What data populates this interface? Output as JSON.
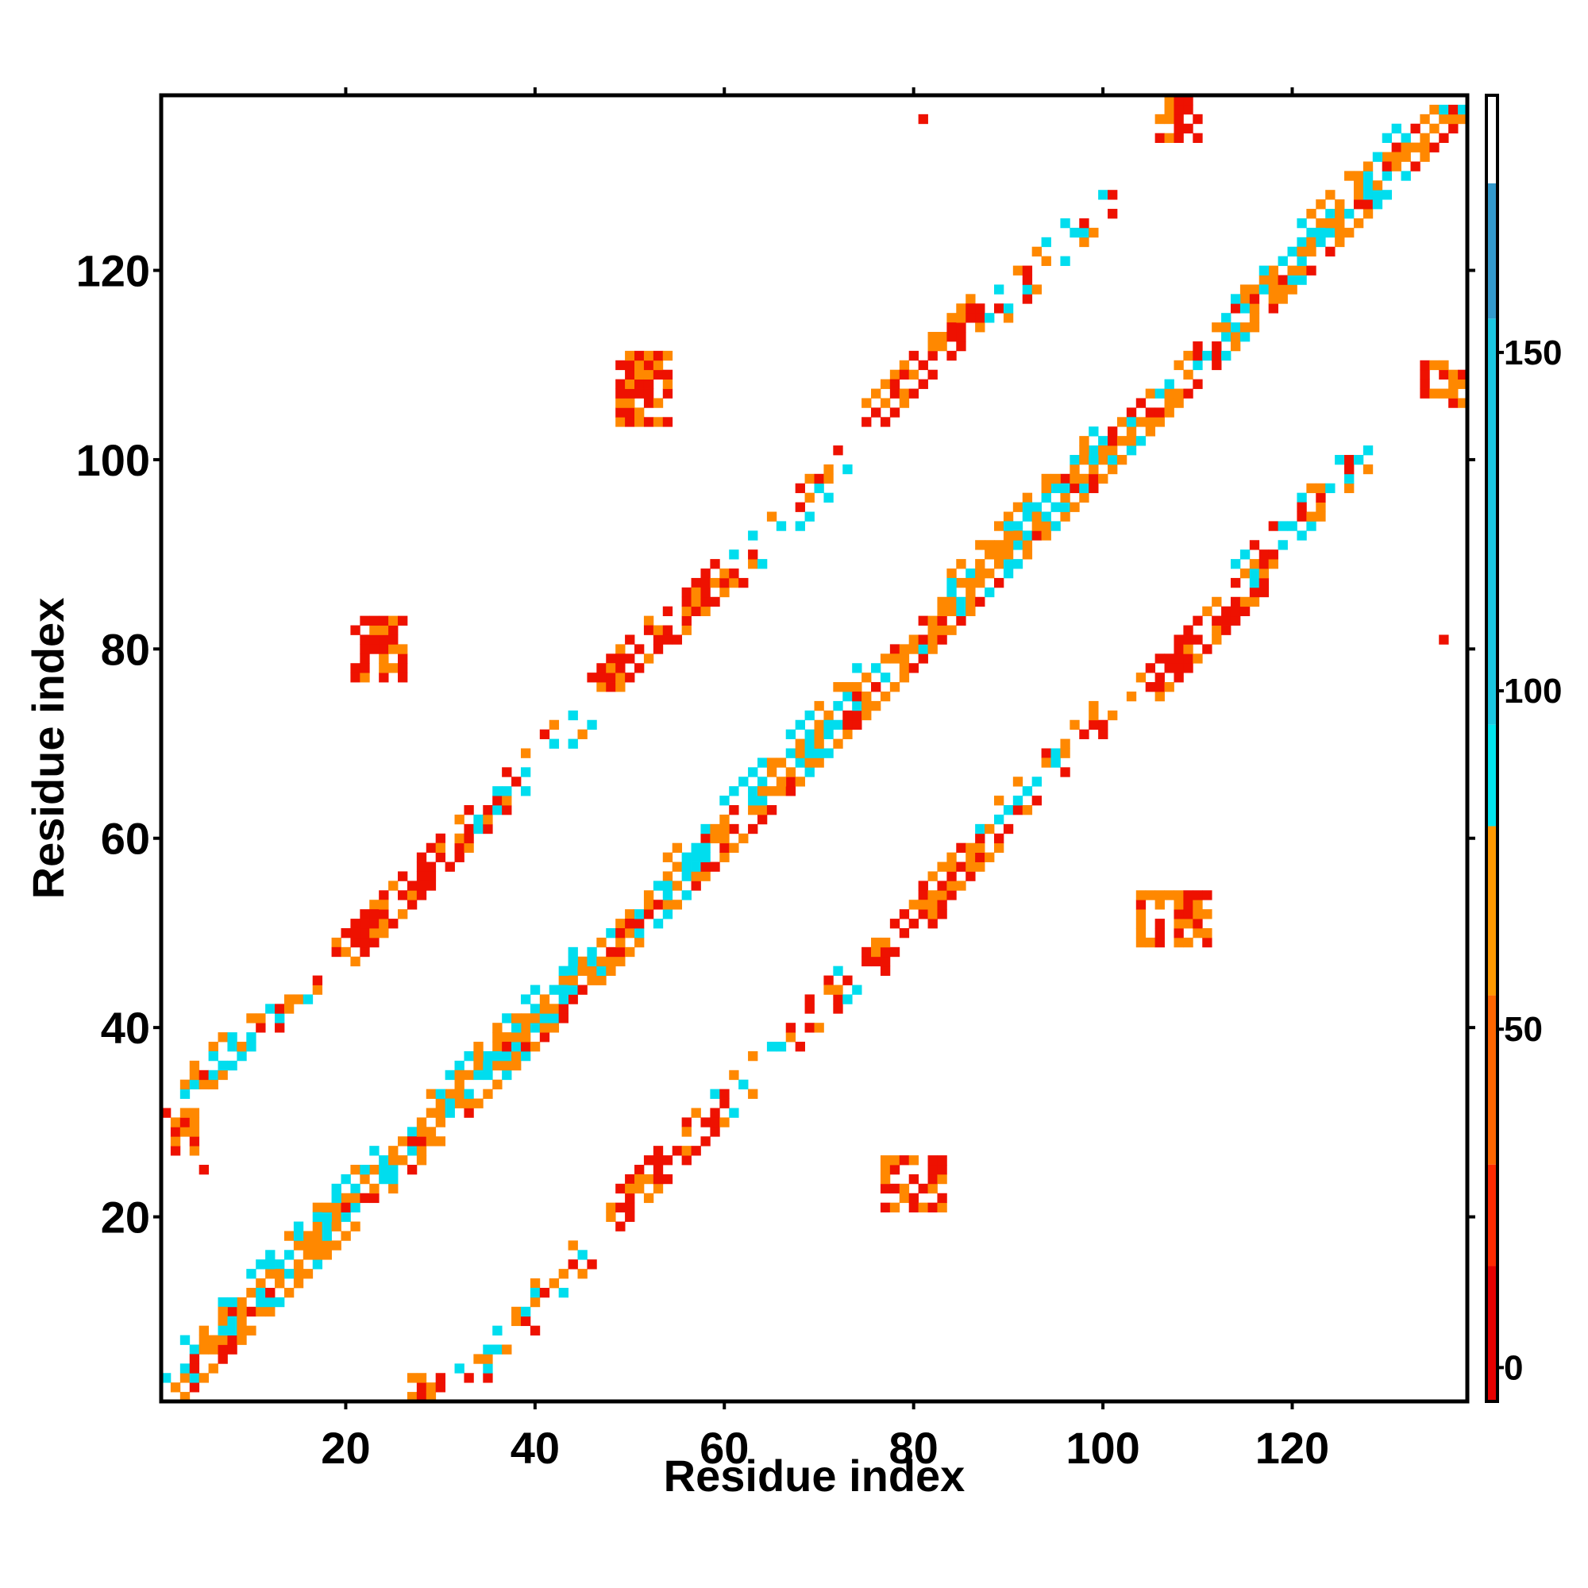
{
  "chart_data": {
    "type": "heatmap",
    "xlabel": "Residue index",
    "ylabel": "Residue index",
    "xlim": [
      1,
      138
    ],
    "ylim": [
      1,
      138
    ],
    "xticks": [
      20,
      40,
      60,
      80,
      100,
      120
    ],
    "yticks": [
      20,
      40,
      60,
      80,
      100,
      120
    ],
    "grid": false,
    "colorbar": {
      "ticks": [
        0,
        50,
        100,
        150
      ],
      "range": [
        -5,
        188
      ],
      "bands": [
        {
          "from": -5,
          "to": 15,
          "color": "#e60000"
        },
        {
          "from": 15,
          "to": 30,
          "color": "#ff2a00"
        },
        {
          "from": 30,
          "to": 55,
          "color": "#ff6600"
        },
        {
          "from": 55,
          "to": 80,
          "color": "#ff9900"
        },
        {
          "from": 80,
          "to": 95,
          "color": "#00e5ee"
        },
        {
          "from": 95,
          "to": 155,
          "color": "#1ac6e0"
        },
        {
          "from": 155,
          "to": 175,
          "color": "#3399cc"
        },
        {
          "from": 175,
          "to": 188,
          "color": "#ffffff"
        }
      ]
    },
    "colors": {
      "red": "#ee1100",
      "orange_red": "#ff4400",
      "orange": "#ff8800",
      "light_orange": "#ffaa00",
      "cyan": "#00ddee",
      "light_blue": "#33bbee"
    },
    "contact_regions": [
      {
        "type": "band",
        "from": [
          1,
          1
        ],
        "to": [
          137,
          137
        ],
        "width": 3,
        "colors": [
          "orange",
          "red",
          "orange",
          "cyan"
        ],
        "density": 0.85
      },
      {
        "type": "band",
        "from": [
          1,
          3
        ],
        "to": [
          45,
          47
        ],
        "width": 3,
        "colors": [
          "cyan",
          "orange"
        ],
        "density": 0.55
      },
      {
        "type": "band",
        "from": [
          55,
          57
        ],
        "to": [
          75,
          77
        ],
        "width": 3,
        "colors": [
          "cyan",
          "orange"
        ],
        "density": 0.55
      },
      {
        "type": "band",
        "from": [
          85,
          87
        ],
        "to": [
          100,
          102
        ],
        "width": 3,
        "colors": [
          "cyan",
          "orange"
        ],
        "density": 0.55
      },
      {
        "type": "band",
        "from": [
          115,
          117
        ],
        "to": [
          132,
          134
        ],
        "width": 3,
        "colors": [
          "cyan",
          "orange"
        ],
        "density": 0.55
      },
      {
        "type": "band",
        "from": [
          20,
          48
        ],
        "to": [
          32,
          60
        ],
        "width": 3,
        "colors": [
          "red",
          "orange",
          "red"
        ],
        "density": 0.8
      },
      {
        "type": "band",
        "from": [
          47,
          76
        ],
        "to": [
          60,
          88
        ],
        "width": 3,
        "colors": [
          "red",
          "orange",
          "red"
        ],
        "density": 0.8
      },
      {
        "type": "band",
        "from": [
          75,
          104
        ],
        "to": [
          87,
          116
        ],
        "width": 3,
        "colors": [
          "red",
          "orange",
          "red"
        ],
        "density": 0.8
      },
      {
        "type": "band",
        "from": [
          48,
          20
        ],
        "to": [
          60,
          32
        ],
        "width": 3,
        "colors": [
          "red",
          "orange",
          "red"
        ],
        "density": 0.8
      },
      {
        "type": "band",
        "from": [
          76,
          47
        ],
        "to": [
          88,
          60
        ],
        "width": 3,
        "colors": [
          "red",
          "orange",
          "red"
        ],
        "density": 0.8
      },
      {
        "type": "band",
        "from": [
          104,
          75
        ],
        "to": [
          116,
          87
        ],
        "width": 3,
        "colors": [
          "red",
          "orange",
          "red"
        ],
        "density": 0.8
      },
      {
        "type": "band",
        "from": [
          3,
          33
        ],
        "to": [
          16,
          45
        ],
        "width": 2,
        "colors": [
          "cyan",
          "red",
          "orange"
        ],
        "density": 0.45
      },
      {
        "type": "band",
        "from": [
          32,
          60
        ],
        "to": [
          45,
          73
        ],
        "width": 2,
        "colors": [
          "cyan",
          "red",
          "orange"
        ],
        "density": 0.45
      },
      {
        "type": "band",
        "from": [
          60,
          87
        ],
        "to": [
          73,
          100
        ],
        "width": 2,
        "colors": [
          "cyan",
          "red",
          "orange"
        ],
        "density": 0.45
      },
      {
        "type": "band",
        "from": [
          88,
          115
        ],
        "to": [
          101,
          128
        ],
        "width": 2,
        "colors": [
          "cyan",
          "red",
          "orange"
        ],
        "density": 0.45
      },
      {
        "type": "band",
        "from": [
          33,
          3
        ],
        "to": [
          45,
          16
        ],
        "width": 2,
        "colors": [
          "cyan",
          "red",
          "orange"
        ],
        "density": 0.45
      },
      {
        "type": "band",
        "from": [
          60,
          32
        ],
        "to": [
          73,
          45
        ],
        "width": 2,
        "colors": [
          "cyan",
          "red",
          "orange"
        ],
        "density": 0.45
      },
      {
        "type": "band",
        "from": [
          87,
          60
        ],
        "to": [
          100,
          73
        ],
        "width": 2,
        "colors": [
          "cyan",
          "red",
          "orange"
        ],
        "density": 0.45
      },
      {
        "type": "band",
        "from": [
          115,
          88
        ],
        "to": [
          128,
          101
        ],
        "width": 2,
        "colors": [
          "cyan",
          "red",
          "orange"
        ],
        "density": 0.45
      },
      {
        "type": "blob",
        "x": [
          1,
          4
        ],
        "y": [
          27,
          31
        ],
        "colors": [
          "red",
          "orange"
        ]
      },
      {
        "type": "blob",
        "x": [
          27,
          30
        ],
        "y": [
          1,
          3
        ],
        "colors": [
          "red",
          "orange"
        ]
      },
      {
        "type": "blob",
        "x": [
          106,
          110
        ],
        "y": [
          134,
          138
        ],
        "colors": [
          "red",
          "orange"
        ]
      },
      {
        "type": "blob",
        "x": [
          134,
          138
        ],
        "y": [
          106,
          110
        ],
        "colors": [
          "red",
          "orange"
        ]
      },
      {
        "type": "blob",
        "x": [
          49,
          54
        ],
        "y": [
          104,
          111
        ],
        "colors": [
          "red",
          "orange"
        ]
      },
      {
        "type": "blob",
        "x": [
          104,
          111
        ],
        "y": [
          49,
          54
        ],
        "colors": [
          "red",
          "orange"
        ]
      },
      {
        "type": "blob",
        "x": [
          21,
          26
        ],
        "y": [
          77,
          83
        ],
        "colors": [
          "red",
          "orange"
        ]
      },
      {
        "type": "blob",
        "x": [
          77,
          83
        ],
        "y": [
          21,
          26
        ],
        "colors": [
          "red",
          "orange"
        ]
      },
      {
        "type": "points",
        "cells": [
          [
            81,
            136
          ],
          [
            136,
            81
          ],
          [
            5,
            25
          ],
          [
            43,
            42
          ]
        ],
        "color": "red"
      }
    ]
  }
}
